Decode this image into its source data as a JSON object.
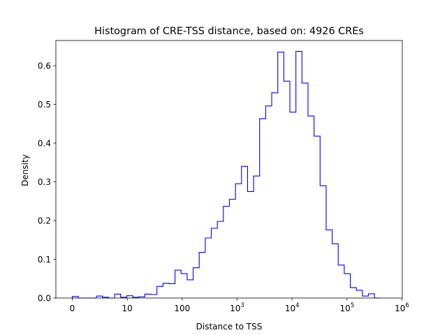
{
  "chart_data": {
    "type": "histogram-step",
    "title": "Histogram of CRE-TSS distance, based on: 4926 CREs",
    "xlabel": "Distance to TSS",
    "ylabel": "Density",
    "x_scale": "log10(x+1)",
    "x_range": [
      0,
      6
    ],
    "ylim": [
      0,
      0.665
    ],
    "grid": false,
    "legend": "none",
    "line_color": "#0000ff",
    "x_ticks": [
      {
        "value": 0,
        "base": "0",
        "exp": ""
      },
      {
        "value": 1,
        "base": "10",
        "exp": ""
      },
      {
        "value": 2,
        "base": "100",
        "exp": ""
      },
      {
        "value": 3,
        "base": "10",
        "exp": "3"
      },
      {
        "value": 4,
        "base": "10",
        "exp": "4"
      },
      {
        "value": 5,
        "base": "10",
        "exp": "5"
      },
      {
        "value": 6,
        "base": "10",
        "exp": "6"
      }
    ],
    "y_ticks": [
      {
        "value": 0.0,
        "label": "0.0"
      },
      {
        "value": 0.1,
        "label": "0.1"
      },
      {
        "value": 0.2,
        "label": "0.2"
      },
      {
        "value": 0.3,
        "label": "0.3"
      },
      {
        "value": 0.4,
        "label": "0.4"
      },
      {
        "value": 0.5,
        "label": "0.5"
      },
      {
        "value": 0.6,
        "label": "0.6"
      }
    ],
    "bin_edges": [
      0,
      0.11,
      0.22,
      0.33,
      0.44,
      0.55,
      0.66,
      0.77,
      0.88,
      0.99,
      1.1,
      1.21,
      1.32,
      1.43,
      1.54,
      1.65,
      1.76,
      1.87,
      1.98,
      2.09,
      2.2,
      2.31,
      2.42,
      2.53,
      2.64,
      2.75,
      2.86,
      2.97,
      3.08,
      3.19,
      3.3,
      3.41,
      3.52,
      3.63,
      3.74,
      3.85,
      3.96,
      4.07,
      4.18,
      4.29,
      4.4,
      4.51,
      4.62,
      4.73,
      4.84,
      4.95,
      5.06,
      5.17,
      5.28,
      5.39,
      5.5,
      5.61
    ],
    "values": [
      0.004,
      0.0,
      0.0,
      0.0,
      0.005,
      0.002,
      0.0,
      0.01,
      0.002,
      0.006,
      0.002,
      0.003,
      0.01,
      0.009,
      0.03,
      0.038,
      0.037,
      0.072,
      0.063,
      0.047,
      0.078,
      0.118,
      0.155,
      0.18,
      0.198,
      0.237,
      0.255,
      0.295,
      0.34,
      0.275,
      0.315,
      0.463,
      0.496,
      0.53,
      0.635,
      0.56,
      0.48,
      0.637,
      0.555,
      0.47,
      0.418,
      0.29,
      0.176,
      0.14,
      0.085,
      0.063,
      0.027,
      0.02,
      0.005,
      0.011,
      0.0
    ]
  }
}
